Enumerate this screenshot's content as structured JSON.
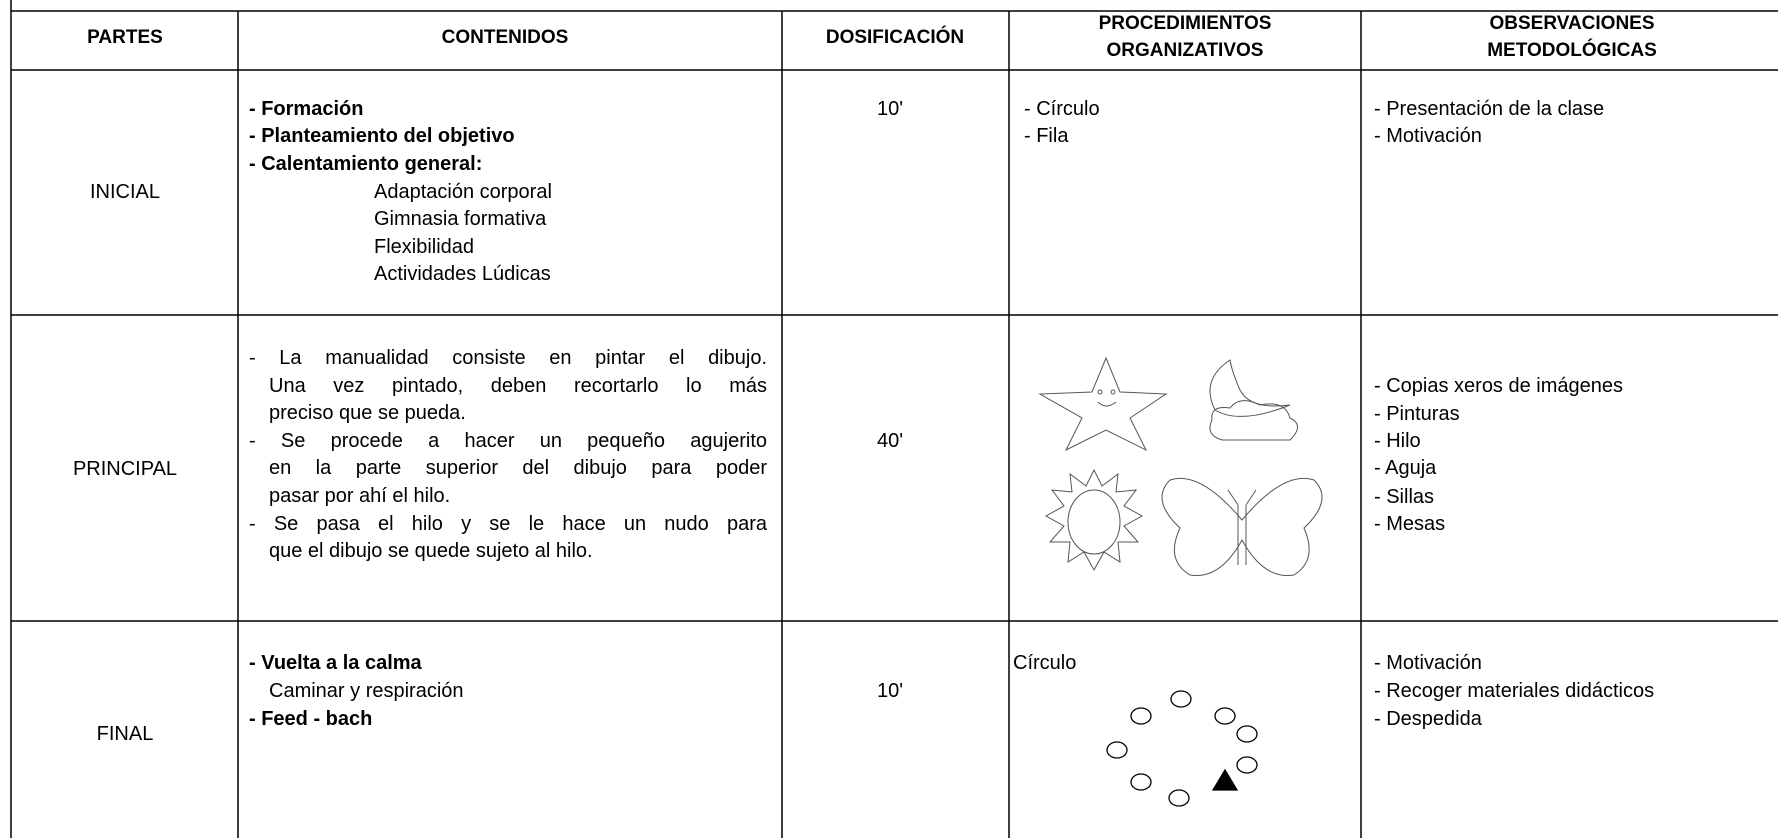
{
  "header": {
    "columns": [
      [
        "PARTES"
      ],
      [
        "CONTENIDOS"
      ],
      [
        "DOSIFICACIÓN"
      ],
      [
        "PROCEDIMIENTOS",
        "ORGANIZATIVOS"
      ],
      [
        "OBSERVACIONES",
        "METODOLÓGICAS"
      ]
    ]
  },
  "rows": [
    {
      "parte": "INICIAL",
      "contenidos": [
        "- Formación",
        "- Planteamiento del objetivo",
        "- Calentamiento general:",
        "Adaptación corporal",
        "Gimnasia formativa",
        "Flexibilidad",
        "Actividades Lúdicas"
      ],
      "dosificacion": "10'",
      "procedimientos": [
        "- Círculo",
        "- Fila"
      ],
      "observaciones": [
        "- Presentación de la clase",
        "- Motivación"
      ]
    },
    {
      "parte": "PRINCIPAL",
      "contenidos": [
        "- La manualidad consiste en pintar el dibujo.",
        "Una vez pintado, deben recortarlo lo más",
        "preciso que se pueda.",
        "- Se procede a hacer un pequeño agujerito",
        "en la parte superior del dibujo para poder",
        "pasar por ahí el hilo.",
        "- Se pasa el hilo y se le hace un nudo para",
        "que el dibujo se quede sujeto al hilo."
      ],
      "dosificacion": "40'",
      "procedimientos": [],
      "observaciones": [
        "- Copias xeros de imágenes",
        "- Pinturas",
        "- Hilo",
        "- Aguja",
        "- Sillas",
        "- Mesas"
      ]
    },
    {
      "parte": "FINAL",
      "contenidos": [
        "- Vuelta a la calma",
        "Caminar y respiración",
        "- Feed - bach"
      ],
      "dosificacion": "10'",
      "procedimientos": [
        "Círculo"
      ],
      "observaciones": [
        "- Motivación",
        "- Recoger materiales didácticos",
        "- Despedida"
      ]
    }
  ]
}
